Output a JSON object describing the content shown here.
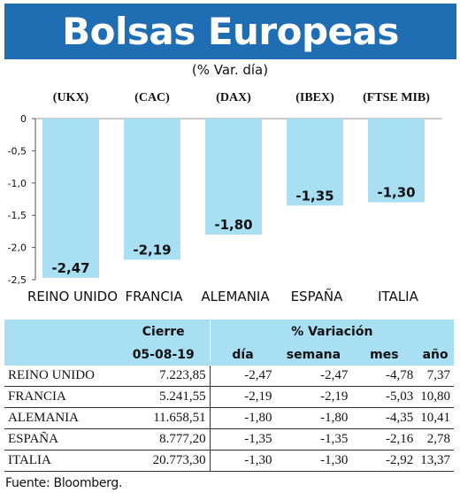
{
  "title": "Bolsas Europeas",
  "subtitle": "(% Var. día)",
  "colors": {
    "banner": "#1f6db3",
    "bar": "#a8dff2",
    "header_bg": "#a8dff2"
  },
  "chart_data": {
    "type": "bar",
    "title": "Bolsas Europeas",
    "subtitle": "(% Var. día)",
    "index_labels": [
      "(UKX)",
      "(CAC)",
      "(DAX)",
      "(IBEX)",
      "(FTSE MIB)"
    ],
    "categories": [
      "REINO UNIDO",
      "FRANCIA",
      "ALEMANIA",
      "ESPAÑA",
      "ITALIA"
    ],
    "values": [
      -2.47,
      -2.19,
      -1.8,
      -1.35,
      -1.3
    ],
    "value_labels": [
      "-2,47",
      "-2,19",
      "-1,80",
      "-1,35",
      "-1,30"
    ],
    "y_ticks": [
      "0",
      "-0,5",
      "-1,0",
      "-1,5",
      "-2,0",
      "-2,5"
    ],
    "y_tick_values": [
      0,
      -0.5,
      -1.0,
      -1.5,
      -2.0,
      -2.5
    ],
    "ylim": [
      -2.5,
      0
    ],
    "grid": false
  },
  "table": {
    "header_cierre": "Cierre",
    "header_variacion": "% Variación",
    "date": "05-08-19",
    "columns": [
      "día",
      "semana",
      "mes",
      "año"
    ],
    "rows": [
      {
        "name": "REINO UNIDO",
        "cierre": "7.223,85",
        "dia": "-2,47",
        "semana": "-2,47",
        "mes": "-4,78",
        "ano": "7,37"
      },
      {
        "name": "FRANCIA",
        "cierre": "5.241,55",
        "dia": "-2,19",
        "semana": "-2,19",
        "mes": "-5,03",
        "ano": "10,80"
      },
      {
        "name": "ALEMANIA",
        "cierre": "11.658,51",
        "dia": "-1,80",
        "semana": "-1,80",
        "mes": "-4,35",
        "ano": "10,41"
      },
      {
        "name": "ESPAÑA",
        "cierre": "8.777,20",
        "dia": "-1,35",
        "semana": "-1,35",
        "mes": "-2,16",
        "ano": "2,78"
      },
      {
        "name": "ITALIA",
        "cierre": "20.773,30",
        "dia": "-1,30",
        "semana": "-1,30",
        "mes": "-2,92",
        "ano": "13,37"
      }
    ]
  },
  "source": "Fuente: Bloomberg."
}
